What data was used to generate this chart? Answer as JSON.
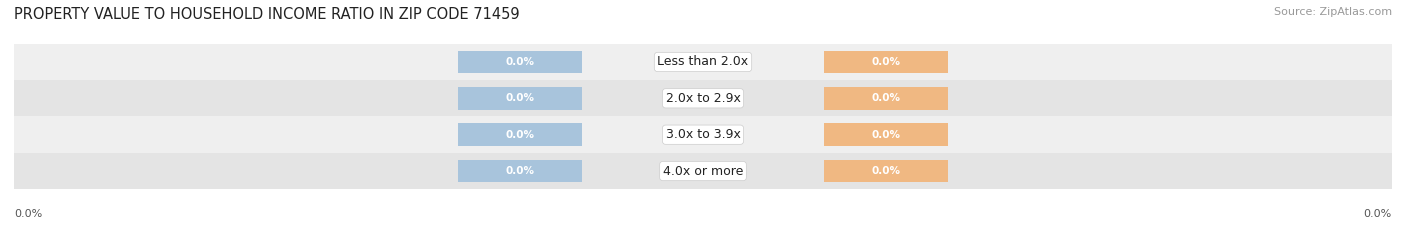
{
  "title": "PROPERTY VALUE TO HOUSEHOLD INCOME RATIO IN ZIP CODE 71459",
  "source": "Source: ZipAtlas.com",
  "categories": [
    "Less than 2.0x",
    "2.0x to 2.9x",
    "3.0x to 3.9x",
    "4.0x or more"
  ],
  "without_mortgage": [
    0.0,
    0.0,
    0.0,
    0.0
  ],
  "with_mortgage": [
    0.0,
    0.0,
    0.0,
    0.0
  ],
  "without_mortgage_color": "#a8c4dc",
  "with_mortgage_color": "#f0b882",
  "row_bg_colors": [
    "#efefef",
    "#e4e4e4"
  ],
  "title_fontsize": 10.5,
  "source_fontsize": 8,
  "value_fontsize": 7.5,
  "label_fontsize": 9,
  "legend_fontsize": 8.5,
  "tick_fontsize": 8,
  "figsize": [
    14.06,
    2.33
  ],
  "dpi": 100
}
